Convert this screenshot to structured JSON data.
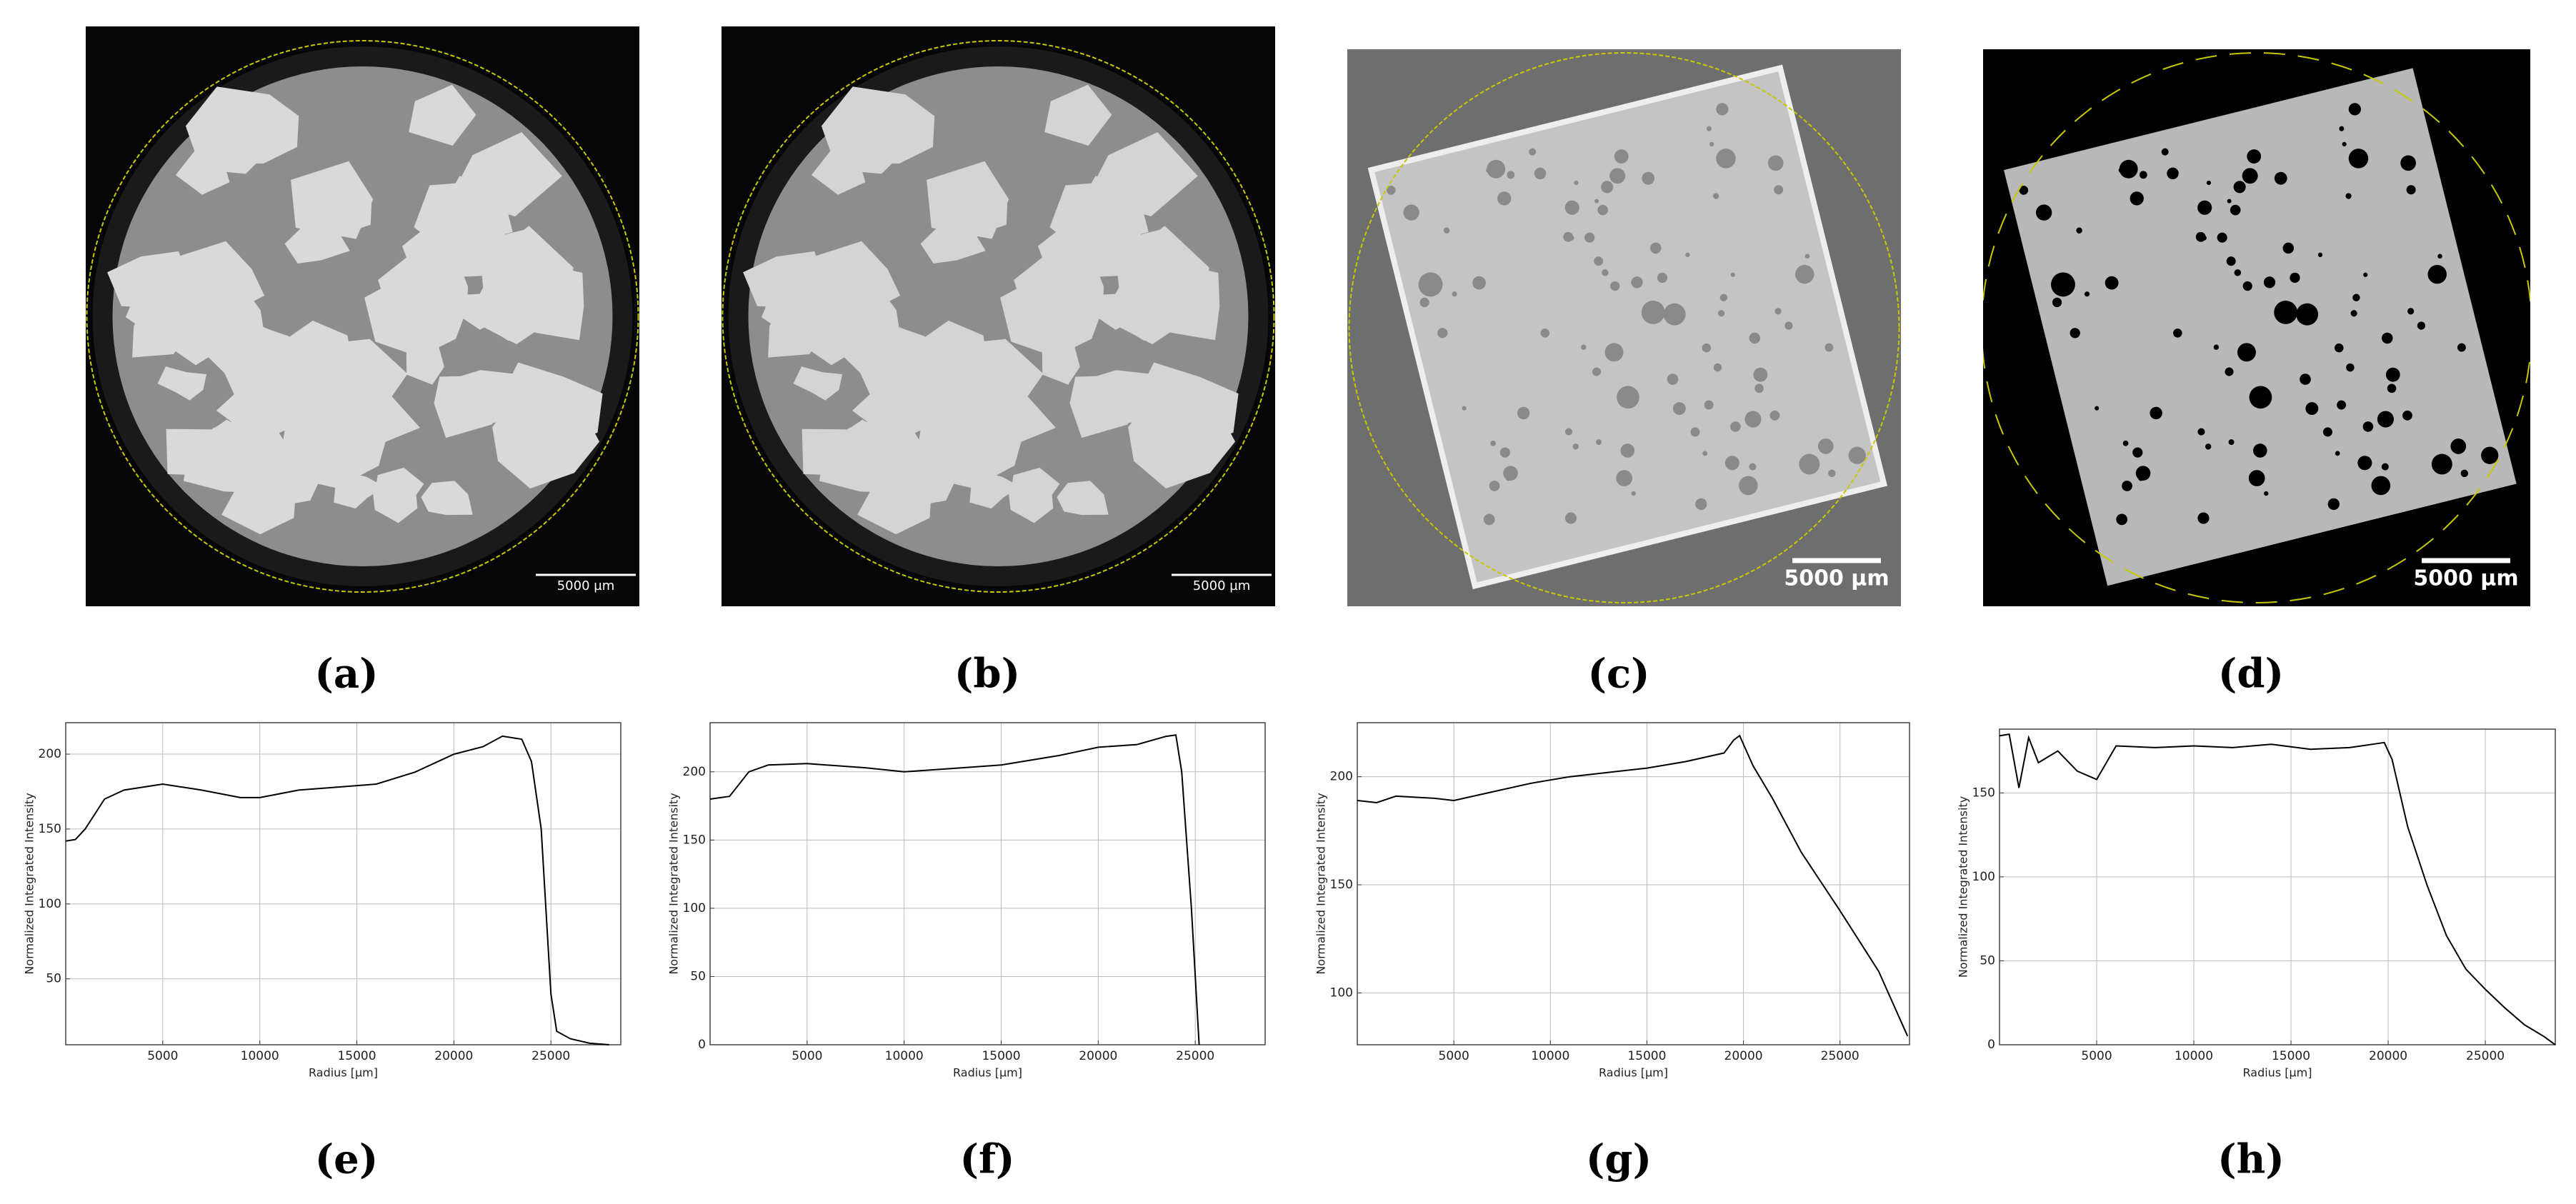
{
  "panels": [
    {
      "caption": "(a)",
      "scale_bar": "5000 µm"
    },
    {
      "caption": "(b)",
      "scale_bar": "5000 µm"
    },
    {
      "caption": "(c)",
      "scale_bar": "5000 µm"
    },
    {
      "caption": "(d)",
      "scale_bar": "5000 µm"
    }
  ],
  "chart_data": [
    {
      "type": "line",
      "caption": "(e)",
      "xlabel": "Radius [µm]",
      "ylabel": "Normalized Integrated Intensity",
      "xlim": [
        0,
        28600
      ],
      "ylim": [
        6,
        221
      ],
      "xticks": [
        5000,
        10000,
        15000,
        20000,
        25000
      ],
      "yticks": [
        50,
        100,
        150,
        200
      ],
      "grid": true,
      "x": [
        0,
        500,
        1000,
        2000,
        3000,
        5000,
        7000,
        9000,
        10000,
        12000,
        14000,
        16000,
        18000,
        20000,
        21500,
        22500,
        23500,
        24000,
        24500,
        25000,
        25300,
        26000,
        27000,
        28000
      ],
      "series": [
        {
          "color": "#000000",
          "values": [
            142,
            143,
            150,
            170,
            176,
            180,
            176,
            171,
            171,
            176,
            178,
            180,
            188,
            200,
            205,
            212,
            210,
            195,
            150,
            40,
            15,
            10,
            7,
            6
          ]
        }
      ]
    },
    {
      "type": "line",
      "caption": "(f)",
      "xlabel": "Radius [µm]",
      "ylabel": "Normalized Integrated Intensity",
      "xlim": [
        0,
        28600
      ],
      "ylim": [
        0,
        236
      ],
      "xticks": [
        5000,
        10000,
        15000,
        20000,
        25000
      ],
      "yticks": [
        0,
        50,
        100,
        150,
        200
      ],
      "grid": true,
      "x": [
        0,
        1000,
        2000,
        3000,
        5000,
        8000,
        10000,
        13000,
        15000,
        18000,
        20000,
        22000,
        23500,
        24000,
        24300,
        24800,
        25200
      ],
      "series": [
        {
          "color": "#000000",
          "values": [
            180,
            182,
            200,
            205,
            206,
            203,
            200,
            203,
            205,
            212,
            218,
            220,
            226,
            227,
            200,
            100,
            0
          ]
        }
      ]
    },
    {
      "type": "line",
      "caption": "(g)",
      "xlabel": "Radius [µm]",
      "ylabel": "Normalized Integrated Intensity",
      "xlim": [
        0,
        28600
      ],
      "ylim": [
        76,
        225
      ],
      "xticks": [
        5000,
        10000,
        15000,
        20000,
        25000
      ],
      "yticks": [
        100,
        150,
        200
      ],
      "grid": true,
      "x": [
        0,
        1000,
        2000,
        4000,
        5000,
        7000,
        9000,
        11000,
        13000,
        15000,
        17000,
        19000,
        19500,
        19800,
        20500,
        21500,
        23000,
        25000,
        27000,
        28500
      ],
      "series": [
        {
          "color": "#000000",
          "values": [
            189,
            188,
            191,
            190,
            189,
            193,
            197,
            200,
            202,
            204,
            207,
            211,
            217,
            219,
            205,
            190,
            165,
            138,
            110,
            80
          ]
        }
      ]
    },
    {
      "type": "line",
      "caption": "(h)",
      "xlabel": "Radius [µm]",
      "ylabel": "Normalized Integrated Intensity",
      "xlim": [
        0,
        28600
      ],
      "ylim": [
        0,
        188
      ],
      "xticks": [
        5000,
        10000,
        15000,
        20000,
        25000
      ],
      "yticks": [
        0,
        50,
        100,
        150
      ],
      "grid": true,
      "x": [
        0,
        500,
        1000,
        1500,
        2000,
        3000,
        4000,
        5000,
        6000,
        8000,
        10000,
        12000,
        14000,
        16000,
        18000,
        19800,
        20200,
        21000,
        22000,
        23000,
        24000,
        25000,
        26000,
        27000,
        28000,
        28600
      ],
      "series": [
        {
          "color": "#000000",
          "values": [
            184,
            185,
            153,
            183,
            168,
            175,
            163,
            158,
            178,
            177,
            178,
            177,
            179,
            176,
            177,
            180,
            170,
            130,
            95,
            65,
            45,
            33,
            22,
            12,
            5,
            0
          ]
        }
      ]
    }
  ]
}
